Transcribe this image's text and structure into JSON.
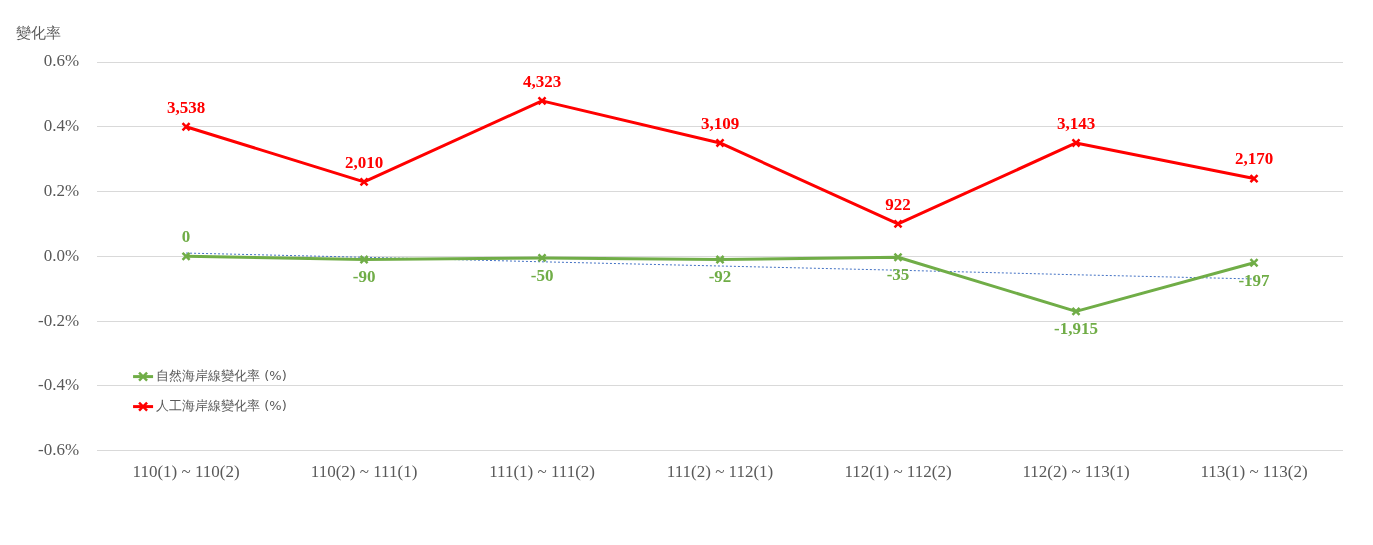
{
  "chart_data": {
    "type": "line",
    "ylabel": "變化率",
    "categories": [
      "110(1) ~ 110(2)",
      "110(2) ~ 111(1)",
      "111(1) ~ 111(2)",
      "111(2) ~ 112(1)",
      "112(1) ~ 112(2)",
      "112(2) ~ 113(1)",
      "113(1) ~ 113(2)"
    ],
    "series": [
      {
        "name": "自然海岸線變化率 (%)",
        "color": "#70ad47",
        "values": [
          0,
          -0.01,
          -0.005,
          -0.01,
          -0.003,
          -0.17,
          -0.02
        ]
      },
      {
        "name": "人工海岸線變化率 (%)",
        "color": "#ff0000",
        "values": [
          0.4,
          0.23,
          0.48,
          0.35,
          0.1,
          0.35,
          0.24
        ]
      },
      {
        "type": "line",
        "color": "#4472c4",
        "marker": "none",
        "line_style": "dotted",
        "values": [
          0.01,
          -0.003,
          -0.017,
          -0.03,
          -0.043,
          -0.057,
          -0.07
        ]
      }
    ],
    "ylim": [
      -0.6,
      0.6
    ],
    "yticks": [
      {
        "value": -0.6,
        "label": "-0.6%"
      },
      {
        "value": -0.4,
        "label": "-0.4%"
      },
      {
        "value": -0.2,
        "label": "-0.2%"
      },
      {
        "value": 0,
        "label": "0.0%"
      },
      {
        "value": 0.2,
        "label": "0.2%"
      },
      {
        "value": 0.4,
        "label": "0.4%"
      },
      {
        "value": 0.6,
        "label": "0.6%"
      }
    ],
    "annotations": [
      {
        "text": "0",
        "x": "110(1) ~ 110(2)",
        "y": 0
      },
      {
        "text": "-90",
        "x": "110(2) ~ 111(1)",
        "y": -0.01
      },
      {
        "text": "-50",
        "x": "111(1) ~ 111(2)",
        "y": -0.005
      },
      {
        "text": "-92",
        "x": "111(2) ~ 112(1)",
        "y": -0.01
      },
      {
        "text": "-35",
        "x": "112(1) ~ 112(2)",
        "y": -0.003
      },
      {
        "text": "-1,915",
        "x": "112(2) ~ 113(1)",
        "y": -0.17
      },
      {
        "text": "-197",
        "x": "113(1) ~ 113(2)",
        "y": -0.02
      },
      {
        "text": "3,538",
        "x": "110(1) ~ 110(2)",
        "y": 0.4
      },
      {
        "text": "2,010",
        "x": "110(2) ~ 111(1)",
        "y": 0.23
      },
      {
        "text": "4,323",
        "x": "111(1) ~ 111(2)",
        "y": 0.48
      },
      {
        "text": "3,109",
        "x": "111(2) ~ 112(1)",
        "y": 0.35
      },
      {
        "text": "922",
        "x": "112(1) ~ 112(2)",
        "y": 0.1
      },
      {
        "text": "3,143",
        "x": "112(2) ~ 113(1)",
        "y": 0.35
      },
      {
        "text": "2,170",
        "x": "113(1) ~ 113(2)",
        "y": 0.24
      }
    ],
    "grid": "y",
    "legend": "bottom left",
    "marker": "cross",
    "line_style": "solid"
  }
}
